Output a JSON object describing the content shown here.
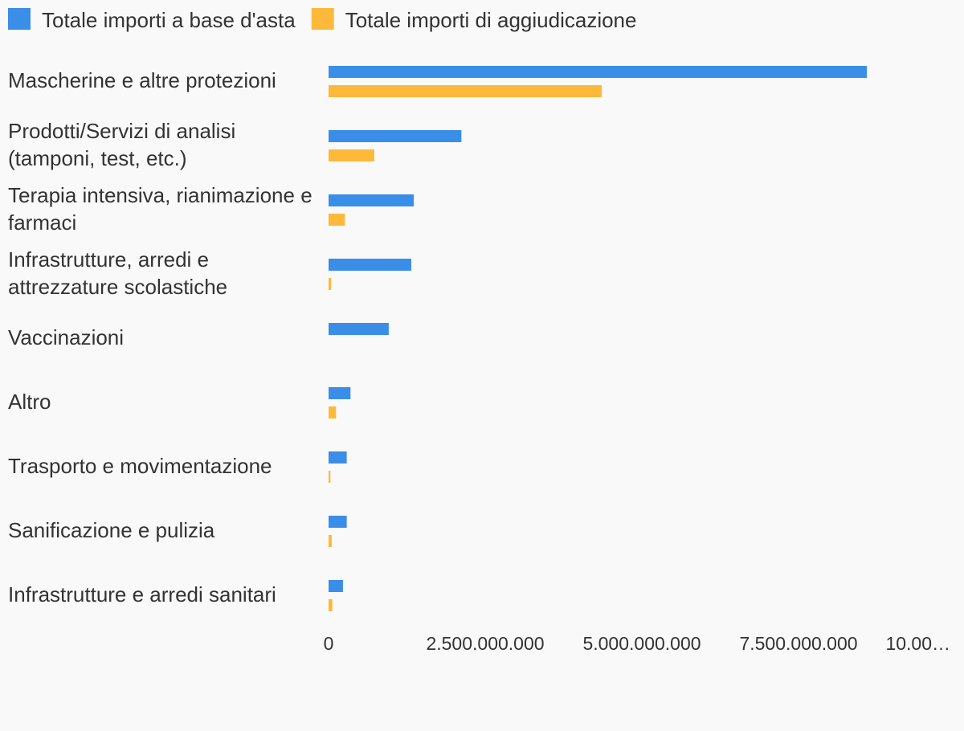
{
  "chart_data": {
    "type": "bar",
    "orientation": "horizontal",
    "categories": [
      "Mascherine e altre protezioni",
      "Prodotti/Servizi di analisi (tamponi, test, etc.)",
      "Terapia intensiva, rianimazione e farmaci",
      "Infrastrutture, arredi e attrezzature scolastiche",
      "Vaccinazioni",
      "Altro",
      "Trasporto e movimentazione",
      "Sanificazione e pulizia",
      "Infrastrutture e arredi sanitari"
    ],
    "series": [
      {
        "name": "Totale importi a base d'asta",
        "color": "#3a8ee8",
        "values": [
          8590000000,
          2120000000,
          1360000000,
          1320000000,
          960000000,
          350000000,
          290000000,
          290000000,
          230000000
        ]
      },
      {
        "name": "Totale importi di aggiudicazione",
        "color": "#ffb93a",
        "values": [
          4360000000,
          730000000,
          260000000,
          40000000,
          0,
          120000000,
          30000000,
          50000000,
          60000000
        ]
      }
    ],
    "xlim": [
      0,
      10000000000
    ],
    "xticks": [
      0,
      {
        "value": 2500000000,
        "label": "2.500.000.000"
      },
      {
        "value": 5000000000,
        "label": "5.000.000.000"
      },
      {
        "value": 7500000000,
        "label": "7.500.000.000"
      },
      {
        "value": 10000000000,
        "label": "10.00…"
      }
    ],
    "legend": "top-left"
  }
}
